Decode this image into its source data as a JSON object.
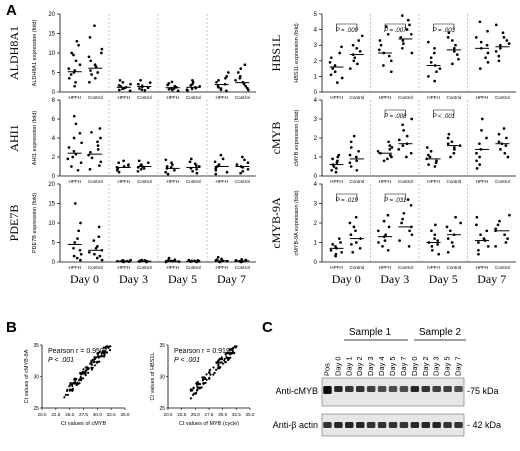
{
  "panel_labels": {
    "A": "A",
    "B": "B",
    "C": "C"
  },
  "days": [
    "Day 0",
    "Day 3",
    "Day 5",
    "Day 7"
  ],
  "groups": [
    "HPFH",
    "Control"
  ],
  "chart_data": [
    {
      "type": "scatter",
      "panel": "A",
      "gene": "ALDH8A1",
      "ylabel": "ALDH8A1 expression (fold)",
      "ylim": [
        0,
        20
      ],
      "yticks": [
        0,
        5,
        10,
        15,
        20
      ],
      "days": [
        "Day 0",
        "Day 3",
        "Day 5",
        "Day 7"
      ],
      "groups": [
        "HPFH",
        "Control"
      ],
      "means": [
        [
          5.2,
          6.1
        ],
        [
          1.2,
          1.4
        ],
        [
          1.1,
          1.2
        ],
        [
          1.9,
          2.4
        ]
      ],
      "values": [
        [
          [
            1.5,
            2.5,
            3.5,
            4.5,
            5,
            5.5,
            6,
            7,
            8,
            9.5,
            10,
            12,
            13
          ],
          [
            2.5,
            3.5,
            4.5,
            5,
            5.5,
            6.5,
            7,
            8,
            9,
            10,
            11,
            14,
            17
          ]
        ],
        [
          [
            0.3,
            0.5,
            0.8,
            1,
            1.2,
            1.5,
            1.7,
            2,
            2.5,
            3
          ],
          [
            0.4,
            0.6,
            0.9,
            1.1,
            1.3,
            1.6,
            2,
            2.4,
            3
          ]
        ],
        [
          [
            0.3,
            0.5,
            0.7,
            0.9,
            1,
            1.2,
            1.5,
            1.8,
            2.2,
            2.6
          ],
          [
            0.4,
            0.6,
            0.8,
            1,
            1.2,
            1.4,
            1.7,
            2,
            2.5,
            3
          ]
        ],
        [
          [
            0.3,
            0.6,
            0.9,
            1.2,
            1.5,
            2,
            2.5,
            3,
            3.5,
            4,
            5
          ],
          [
            0.5,
            1,
            1.5,
            2,
            2.5,
            3,
            3.5,
            4,
            5,
            6,
            7
          ]
        ]
      ],
      "annotations": []
    },
    {
      "type": "scatter",
      "panel": "A",
      "gene": "AHI1",
      "ylabel": "AHI1 expression (fold)",
      "ylim": [
        0,
        8
      ],
      "yticks": [
        0,
        2,
        4,
        6,
        8
      ],
      "days": [
        "Day 0",
        "Day 3",
        "Day 5",
        "Day 7"
      ],
      "groups": [
        "HPFH",
        "Control"
      ],
      "means": [
        [
          2.4,
          2.3
        ],
        [
          0.9,
          1.0
        ],
        [
          0.8,
          0.9
        ],
        [
          1.0,
          1.0
        ]
      ],
      "values": [
        [
          [
            0.6,
            1,
            1.4,
            1.8,
            2,
            2.3,
            2.6,
            3,
            3.5,
            4,
            4.5,
            5.5,
            6.3
          ],
          [
            0.7,
            1.1,
            1.5,
            1.9,
            2.2,
            2.5,
            2.8,
            3.2,
            3.6,
            4,
            4.6,
            5
          ]
        ],
        [
          [
            0.4,
            0.6,
            0.8,
            0.9,
            1,
            1.1,
            1.2,
            1.4,
            1.6
          ],
          [
            0.5,
            0.7,
            0.8,
            0.9,
            1,
            1.1,
            1.2,
            1.4,
            1.6
          ]
        ],
        [
          [
            0.2,
            0.4,
            0.6,
            0.8,
            0.9,
            1,
            1.2,
            1.4,
            1.7
          ],
          [
            0.3,
            0.5,
            0.7,
            0.8,
            1,
            1.1,
            1.3,
            1.5,
            1.8
          ]
        ],
        [
          [
            0.2,
            0.4,
            0.6,
            0.8,
            1,
            1.2,
            1.5,
            1.8,
            2.2
          ],
          [
            0.3,
            0.5,
            0.7,
            0.9,
            1,
            1.2,
            1.4,
            1.7,
            2
          ]
        ]
      ],
      "annotations": []
    },
    {
      "type": "scatter",
      "panel": "A",
      "gene": "PDE7B",
      "ylabel": "PDE7B expression (fold)",
      "ylim": [
        0,
        20
      ],
      "yticks": [
        0,
        5,
        10,
        15,
        20
      ],
      "days": [
        "Day 0",
        "Day 3",
        "Day 5",
        "Day 7"
      ],
      "groups": [
        "HPFH",
        "Control"
      ],
      "means": [
        [
          4.5,
          3.0
        ],
        [
          0.2,
          0.2
        ],
        [
          0.2,
          0.2
        ],
        [
          0.3,
          0.3
        ]
      ],
      "values": [
        [
          [
            0.5,
            1,
            1.5,
            2,
            3,
            3.5,
            5,
            6,
            8,
            10,
            15
          ],
          [
            0.5,
            1,
            1.5,
            2,
            2.5,
            3,
            3.5,
            4,
            5.5,
            6.5,
            9
          ]
        ],
        [
          [
            0,
            0.1,
            0.1,
            0.2,
            0.2,
            0.3,
            0.4,
            0.5
          ],
          [
            0,
            0.1,
            0.2,
            0.2,
            0.3,
            0.4,
            0.5
          ]
        ],
        [
          [
            0,
            0.1,
            0.2,
            0.2,
            0.3,
            0.4,
            0.6,
            1
          ],
          [
            0,
            0.1,
            0.2,
            0.3,
            0.3,
            0.4,
            0.5
          ]
        ],
        [
          [
            0,
            0.1,
            0.2,
            0.3,
            0.4,
            0.6,
            0.8,
            1.2
          ],
          [
            0,
            0.1,
            0.2,
            0.3,
            0.4,
            0.5,
            0.7
          ]
        ]
      ],
      "annotations": []
    },
    {
      "type": "scatter",
      "panel": "A",
      "gene": "HBS1L",
      "ylabel": "HBS1L expression (fold)",
      "ylim": [
        0,
        5
      ],
      "yticks": [
        0,
        1,
        2,
        3,
        4,
        5
      ],
      "days": [
        "Day 0",
        "Day 3",
        "Day 5",
        "Day 7"
      ],
      "groups": [
        "HPFH",
        "Control"
      ],
      "means": [
        [
          1.6,
          2.4
        ],
        [
          2.5,
          3.4
        ],
        [
          1.7,
          2.7
        ],
        [
          2.8,
          2.9
        ]
      ],
      "values": [
        [
          [
            0.6,
            0.9,
            1.1,
            1.3,
            1.5,
            1.7,
            1.9,
            2.2,
            2.5,
            2.9
          ],
          [
            1.5,
            1.8,
            2,
            2.2,
            2.4,
            2.6,
            2.8,
            3,
            3.3,
            3.6
          ]
        ],
        [
          [
            1.3,
            1.7,
            2,
            2.3,
            2.5,
            2.7,
            3,
            3.3,
            3.7,
            4.2
          ],
          [
            2.5,
            2.8,
            3.1,
            3.3,
            3.5,
            3.7,
            4,
            4.3,
            4.6,
            4.9
          ]
        ],
        [
          [
            0.7,
            1,
            1.3,
            1.5,
            1.7,
            1.9,
            2.2,
            2.5,
            2.8,
            3.2
          ],
          [
            1.8,
            2.1,
            2.4,
            2.6,
            2.8,
            3,
            3.3,
            3.5,
            3.8
          ]
        ],
        [
          [
            1.5,
            1.9,
            2.2,
            2.5,
            2.8,
            3,
            3.2,
            3.5,
            3.9,
            4.5
          ],
          [
            2,
            2.3,
            2.6,
            2.8,
            3,
            3.1,
            3.3,
            3.5,
            3.8,
            4.3
          ]
        ]
      ],
      "annotations": [
        {
          "day": 0,
          "text": "P = .009"
        },
        {
          "day": 1,
          "text": "P = .007"
        },
        {
          "day": 2,
          "text": "P = .003"
        }
      ]
    },
    {
      "type": "scatter",
      "panel": "A",
      "gene": "cMYB",
      "ylabel": "cMYB expression (fold)",
      "ylim": [
        0,
        4
      ],
      "yticks": [
        0,
        1,
        2,
        3,
        4
      ],
      "days": [
        "Day 0",
        "Day 3",
        "Day 5",
        "Day 7"
      ],
      "groups": [
        "HPFH",
        "Control"
      ],
      "means": [
        [
          0.6,
          0.9
        ],
        [
          1.2,
          1.7
        ],
        [
          0.9,
          1.6
        ],
        [
          1.4,
          1.7
        ]
      ],
      "values": [
        [
          [
            0.2,
            0.3,
            0.4,
            0.5,
            0.6,
            0.7,
            0.8,
            0.9,
            1,
            1.1
          ],
          [
            0.3,
            0.5,
            0.7,
            0.8,
            1,
            1.1,
            1.3,
            1.5,
            1.8,
            2.1
          ]
        ],
        [
          [
            0.8,
            0.9,
            1,
            1.1,
            1.2,
            1.3,
            1.4,
            1.5,
            1.6,
            1.8
          ],
          [
            1,
            1.2,
            1.4,
            1.6,
            1.7,
            1.9,
            2.1,
            2.4,
            2.7,
            3
          ]
        ],
        [
          [
            0.5,
            0.6,
            0.7,
            0.8,
            0.9,
            1,
            1.1,
            1.3,
            1.5
          ],
          [
            1,
            1.2,
            1.4,
            1.5,
            1.6,
            1.7,
            1.8,
            2,
            2.2
          ]
        ],
        [
          [
            0.4,
            0.6,
            0.8,
            1,
            1.2,
            1.4,
            1.7,
            2,
            2.4,
            3
          ],
          [
            1,
            1.2,
            1.4,
            1.6,
            1.7,
            1.8,
            2,
            2.2,
            2.5
          ]
        ]
      ],
      "annotations": [
        {
          "day": 1,
          "text": "P = .008"
        },
        {
          "day": 2,
          "text": "P < .001"
        }
      ]
    },
    {
      "type": "scatter",
      "panel": "A",
      "gene": "cMYB-9A",
      "ylabel": "cMYB-9A expression (fold)",
      "ylim": [
        0,
        4
      ],
      "yticks": [
        0,
        1,
        2,
        3,
        4
      ],
      "days": [
        "Day 0",
        "Day 3",
        "Day 5",
        "Day 7"
      ],
      "groups": [
        "HPFH",
        "Control"
      ],
      "means": [
        [
          0.7,
          1.2
        ],
        [
          1.3,
          1.8
        ],
        [
          1.0,
          1.4
        ],
        [
          1.1,
          1.6
        ]
      ],
      "values": [
        [
          [
            0.3,
            0.4,
            0.5,
            0.6,
            0.7,
            0.8,
            0.9,
            1,
            1.2
          ],
          [
            0.5,
            0.7,
            0.9,
            1,
            1.2,
            1.4,
            1.6,
            1.8,
            2,
            2.3
          ]
        ],
        [
          [
            0.6,
            0.8,
            1,
            1.1,
            1.3,
            1.4,
            1.6,
            1.8,
            2.1,
            2.4
          ],
          [
            0.8,
            1.1,
            1.4,
            1.6,
            1.8,
            2,
            2.2,
            2.5,
            2.9,
            3.2
          ]
        ],
        [
          [
            0.4,
            0.6,
            0.8,
            0.9,
            1,
            1.1,
            1.2,
            1.4,
            1.6,
            1.9
          ],
          [
            0.5,
            0.8,
            1,
            1.2,
            1.4,
            1.6,
            1.8,
            2,
            2.3
          ]
        ],
        [
          [
            0.4,
            0.6,
            0.8,
            1,
            1.1,
            1.2,
            1.4,
            1.6,
            1.9,
            2.3
          ],
          [
            0.8,
            1,
            1.2,
            1.4,
            1.6,
            1.7,
            1.9,
            2.1,
            2.4
          ]
        ]
      ],
      "annotations": [
        {
          "day": 0,
          "text": "P = .019"
        },
        {
          "day": 1,
          "text": "P = .031"
        }
      ]
    },
    {
      "type": "scatter",
      "panel": "B",
      "xlabel": "Ct values of cMYB",
      "ylabel": "Ct values of cMYB-9A",
      "xlim": [
        20,
        35
      ],
      "ylim": [
        25,
        35
      ],
      "xticks": [
        "20.0",
        "22.5",
        "25.0",
        "27.5",
        "30.0",
        "32.5",
        "35.0"
      ],
      "yticks": [
        "25",
        "30",
        "35"
      ],
      "stat_r_label": "Pearson r = 0.9501",
      "stat_p_label": "P < .001",
      "slope": 0.95,
      "intercept": 4.3,
      "n_points": 120
    },
    {
      "type": "scatter",
      "panel": "B",
      "xlabel": "Ct values of MYB (cycle)",
      "ylabel": "Ct values of HBS1L",
      "xlim": [
        20,
        35
      ],
      "ylim": [
        25,
        35
      ],
      "xticks": [
        "20.0",
        "22.5",
        "25.0",
        "27.5",
        "30.0",
        "32.5",
        "35.0"
      ],
      "yticks": [
        "25",
        "30",
        "35"
      ],
      "stat_r_label": "Pearson r = 0.9199",
      "stat_p_label": "P < .001",
      "slope": 0.9,
      "intercept": 5.5,
      "n_points": 110
    }
  ],
  "blot": {
    "sample1_label": "Sample 1",
    "sample2_label": "Sample 2",
    "lanes": [
      "Pos",
      "Day 0",
      "Day 1",
      "Day 2",
      "Day 3",
      "Day 4",
      "Day 5",
      "Day 7",
      "Day 0",
      "Day 2",
      "Day 3",
      "Day 5",
      "Day 7"
    ],
    "row1_label": "Anti-cMYB",
    "row1_marker": "-75 kDa",
    "row2_label": "Anti-β actin",
    "row2_marker": "- 42 kDa",
    "cmyb_intensity": [
      0.95,
      0.85,
      0.8,
      0.8,
      0.75,
      0.7,
      0.7,
      0.7,
      0.85,
      0.8,
      0.75,
      0.75,
      0.7
    ],
    "actin_intensity": [
      0.8,
      0.85,
      0.85,
      0.85,
      0.8,
      0.8,
      0.8,
      0.8,
      0.85,
      0.85,
      0.85,
      0.8,
      0.8
    ]
  }
}
